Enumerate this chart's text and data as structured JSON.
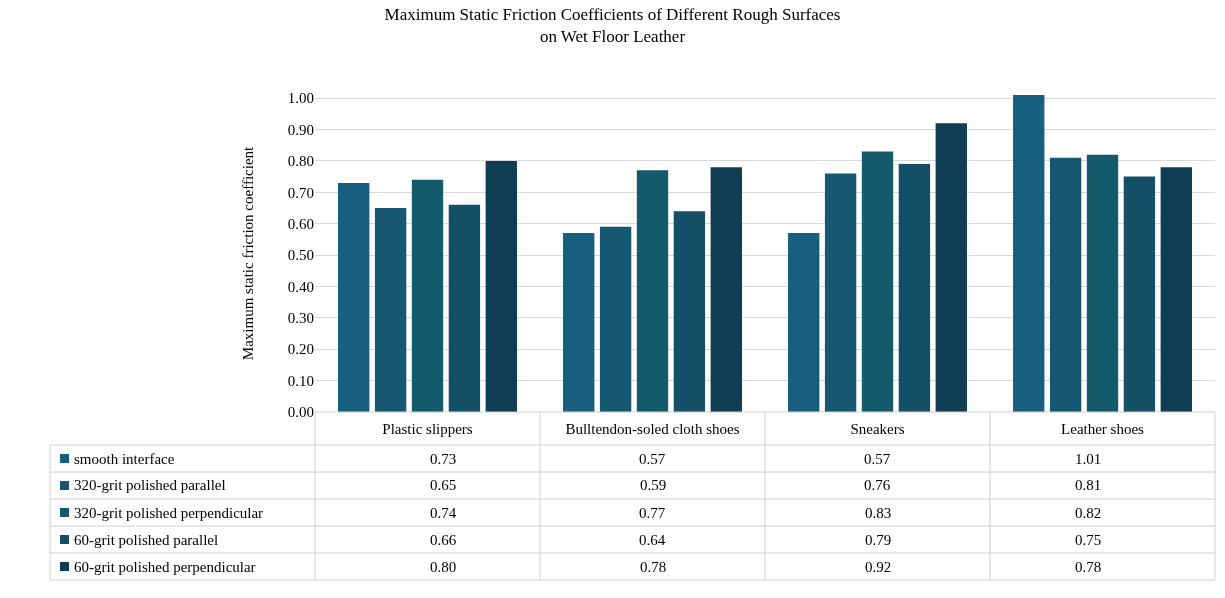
{
  "chart_data": {
    "type": "bar",
    "title": "Maximum Static Friction Coefficients of Different Rough Surfaces\non Wet Floor Leather",
    "ylabel": "Maximum static friction coefficient",
    "categories": [
      "Plastic slippers",
      "Bulltendon-soled cloth shoes",
      "Sneakers",
      "Leather shoes"
    ],
    "series": [
      {
        "name": "smooth interface",
        "color": "#175e7f",
        "values": [
          0.73,
          0.57,
          0.57,
          1.01
        ],
        "value_labels": [
          "0.73",
          "0.57",
          "0.57",
          "1.01"
        ]
      },
      {
        "name": "320-grit polished parallel",
        "color": "#165872",
        "values": [
          0.65,
          0.59,
          0.76,
          0.81
        ],
        "value_labels": [
          "0.65",
          "0.59",
          "0.76",
          "0.81"
        ]
      },
      {
        "name": "320-grit polished perpendicular",
        "color": "#145a6a",
        "values": [
          0.74,
          0.77,
          0.83,
          0.82
        ],
        "value_labels": [
          "0.74",
          "0.77",
          "0.83",
          "0.82"
        ]
      },
      {
        "name": "60-grit polished parallel",
        "color": "#134f66",
        "values": [
          0.66,
          0.64,
          0.79,
          0.75
        ],
        "value_labels": [
          "0.66",
          "0.64",
          "0.79",
          "0.75"
        ]
      },
      {
        "name": "60-grit polished perpendicular",
        "color": "#0f3d54",
        "values": [
          0.8,
          0.78,
          0.92,
          0.78
        ],
        "value_labels": [
          "0.80",
          "0.78",
          "0.92",
          "0.78"
        ]
      }
    ],
    "ylim": [
      0,
      1.01
    ],
    "yticks": [
      {
        "value": 0,
        "label": "0.00"
      },
      {
        "value": 0.1,
        "label": "0.10"
      },
      {
        "value": 0.2,
        "label": "0.20"
      },
      {
        "value": 0.3,
        "label": "0.30"
      },
      {
        "value": 0.4,
        "label": "0.40"
      },
      {
        "value": 0.5,
        "label": "0.50"
      },
      {
        "value": 0.6,
        "label": "0.60"
      },
      {
        "value": 0.7,
        "label": "0.70"
      },
      {
        "value": 0.8,
        "label": "0.80"
      },
      {
        "value": 0.9,
        "label": "0.90"
      },
      {
        "value": 1,
        "label": "1.00"
      }
    ],
    "grid": "y",
    "legend": "bottom left"
  }
}
